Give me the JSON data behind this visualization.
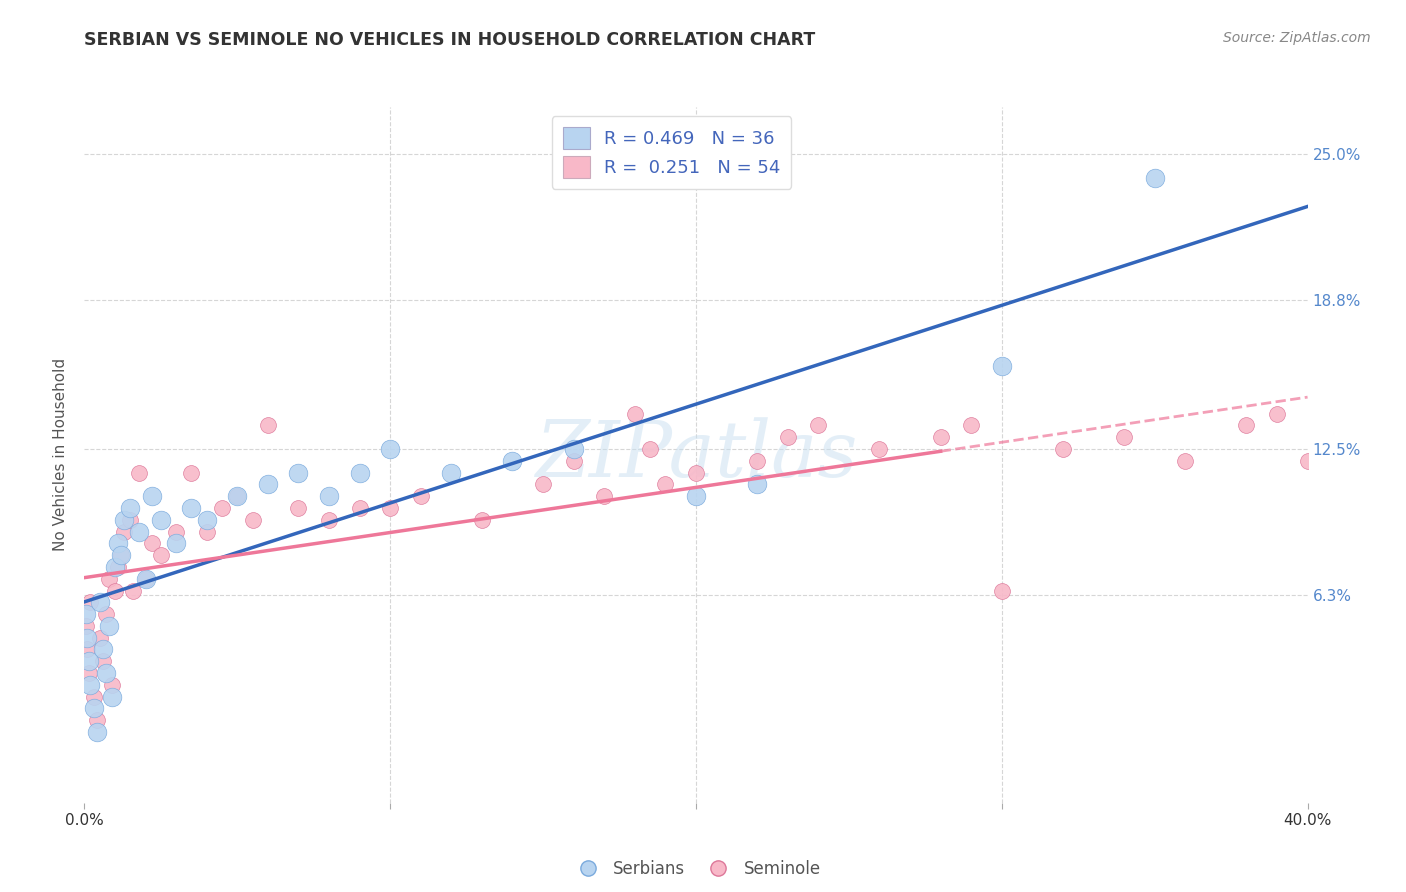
{
  "title": "SERBIAN VS SEMINOLE NO VEHICLES IN HOUSEHOLD CORRELATION CHART",
  "source": "Source: ZipAtlas.com",
  "ylabel": "No Vehicles in Household",
  "watermark": "ZIPatlas",
  "series": [
    {
      "name": "Serbians",
      "color": "#b8d4f0",
      "edge_color": "#7aaadd",
      "R": 0.469,
      "N": 36,
      "trend_color": "#3366bb",
      "trend_style": "-"
    },
    {
      "name": "Seminole",
      "color": "#f8b8c8",
      "edge_color": "#dd7799",
      "R": 0.251,
      "N": 54,
      "trend_color": "#ee7799",
      "trend_style": "-"
    }
  ],
  "xlim": [
    0.0,
    40.0
  ],
  "ylim": [
    -2.5,
    27.0
  ],
  "yticks_right": [
    6.3,
    12.5,
    18.8,
    25.0
  ],
  "ytick_labels_right": [
    "6.3%",
    "12.5%",
    "18.8%",
    "25.0%"
  ],
  "grid_color": "#cccccc",
  "background_color": "#ffffff",
  "serbian_x": [
    0.05,
    0.1,
    0.15,
    0.2,
    0.3,
    0.4,
    0.5,
    0.6,
    0.7,
    0.8,
    0.9,
    1.0,
    1.1,
    1.2,
    1.3,
    1.5,
    1.8,
    2.0,
    2.2,
    2.5,
    3.0,
    3.5,
    4.0,
    5.0,
    6.0,
    7.0,
    8.0,
    9.0,
    10.0,
    12.0,
    14.0,
    16.0,
    20.0,
    22.0,
    30.0,
    35.0
  ],
  "serbian_y": [
    5.5,
    4.5,
    3.5,
    2.5,
    1.5,
    0.5,
    6.0,
    4.0,
    3.0,
    5.0,
    2.0,
    7.5,
    8.5,
    8.0,
    9.5,
    10.0,
    9.0,
    7.0,
    10.5,
    9.5,
    8.5,
    10.0,
    9.5,
    10.5,
    11.0,
    11.5,
    10.5,
    11.5,
    12.5,
    11.5,
    12.0,
    12.5,
    10.5,
    11.0,
    16.0,
    24.0
  ],
  "seminole_x": [
    0.05,
    0.1,
    0.15,
    0.2,
    0.3,
    0.4,
    0.5,
    0.6,
    0.7,
    0.8,
    0.9,
    1.0,
    1.1,
    1.2,
    1.3,
    1.5,
    1.6,
    1.8,
    2.0,
    2.2,
    2.5,
    3.0,
    3.5,
    4.0,
    4.5,
    5.0,
    5.5,
    6.0,
    7.0,
    8.0,
    9.0,
    10.0,
    11.0,
    13.0,
    15.0,
    17.0,
    18.5,
    19.0,
    20.0,
    22.0,
    23.0,
    24.0,
    26.0,
    28.0,
    29.0,
    30.0,
    32.0,
    34.0,
    36.0,
    38.0,
    39.0,
    40.0,
    18.0,
    16.0
  ],
  "seminole_y": [
    5.0,
    4.0,
    3.0,
    6.0,
    2.0,
    1.0,
    4.5,
    3.5,
    5.5,
    7.0,
    2.5,
    6.5,
    7.5,
    8.0,
    9.0,
    9.5,
    6.5,
    11.5,
    7.0,
    8.5,
    8.0,
    9.0,
    11.5,
    9.0,
    10.0,
    10.5,
    9.5,
    13.5,
    10.0,
    9.5,
    10.0,
    10.0,
    10.5,
    9.5,
    11.0,
    10.5,
    12.5,
    11.0,
    11.5,
    12.0,
    13.0,
    13.5,
    12.5,
    13.0,
    13.5,
    6.5,
    12.5,
    13.0,
    12.0,
    13.5,
    14.0,
    12.0,
    14.0,
    12.0
  ],
  "seminole_solid_max_x": 28.0,
  "dot_size_serbian": 180,
  "dot_size_seminole": 130
}
